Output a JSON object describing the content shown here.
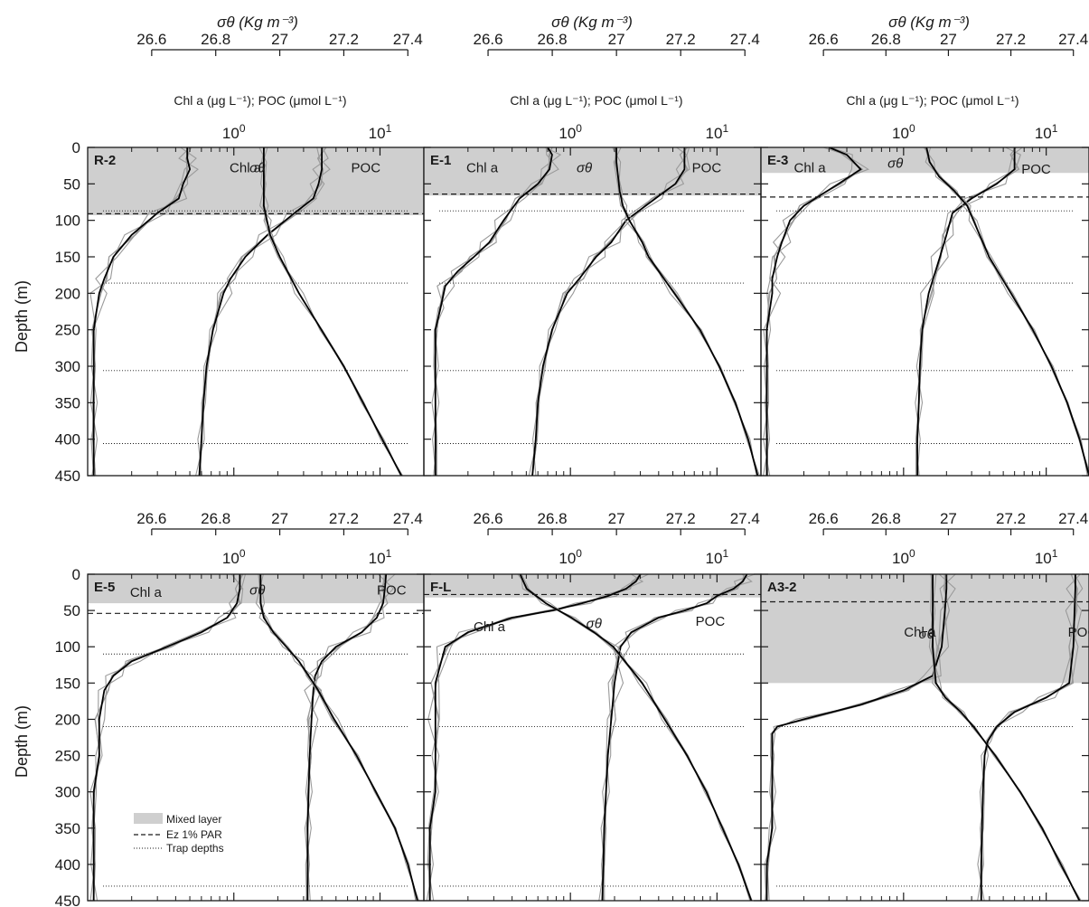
{
  "figure": {
    "top_sigma_label": "σθ (Kg m⁻³)",
    "top_conc_label": "Chl a (μg L⁻¹);  POC (μmol L⁻¹)",
    "ylabel": "Depth (m)",
    "legend": {
      "mixed": "Mixed layer",
      "ez": "Ez 1% PAR",
      "trap": "Trap depths"
    }
  },
  "colors": {
    "mixed_layer": "#cfcfcf",
    "replicates": "#9a9a9a",
    "mean": "#000000",
    "frame": "#1a1a1a"
  },
  "chart_data": [
    {
      "type": "line",
      "title": "R-2",
      "sigma_ticks": [
        "26.6",
        "26.8",
        "27",
        "27.2",
        "27.4"
      ],
      "conc_ticks": [
        "10^0",
        "10^1"
      ],
      "depth_ticks": [
        "0",
        "50",
        "100",
        "150",
        "200",
        "250",
        "300",
        "350",
        "400",
        "450"
      ],
      "ylim": [
        450,
        0
      ],
      "sigma_xlim": [
        26.4,
        27.45
      ],
      "conc_xlim_log10": [
        -1.0,
        1.3
      ],
      "mixed_layer_depth": 93,
      "ez_depth": 91,
      "trap_depths": [
        87,
        186,
        306,
        406
      ],
      "annotations": [
        {
          "text": "Chl a",
          "depth": 28,
          "conc": 1.2
        },
        {
          "text": "σθ",
          "depth": 28,
          "sigma": 26.93
        },
        {
          "text": "POC",
          "depth": 28,
          "conc": 8.0
        }
      ],
      "series": [
        {
          "name": "Chl a",
          "depth": [
            0,
            15,
            30,
            50,
            70,
            90,
            120,
            150,
            180,
            200,
            250,
            300,
            350,
            400,
            450
          ],
          "value": [
            0.48,
            0.48,
            0.5,
            0.45,
            0.42,
            0.3,
            0.2,
            0.15,
            0.13,
            0.12,
            0.11,
            0.11,
            0.11,
            0.11,
            0.11
          ]
        },
        {
          "name": "POC",
          "depth": [
            0,
            15,
            30,
            50,
            70,
            90,
            120,
            150,
            180,
            200,
            250,
            300,
            350,
            400,
            450
          ],
          "value": [
            4.0,
            4.0,
            4.0,
            3.8,
            3.5,
            2.6,
            1.7,
            1.2,
            0.95,
            0.85,
            0.72,
            0.65,
            0.62,
            0.6,
            0.58
          ]
        },
        {
          "name": "σθ",
          "depth": [
            0,
            20,
            50,
            80,
            100,
            120,
            150,
            200,
            250,
            300,
            350,
            400,
            450
          ],
          "value": [
            26.95,
            26.95,
            26.95,
            26.95,
            26.96,
            26.97,
            27.0,
            27.06,
            27.13,
            27.2,
            27.26,
            27.32,
            27.38
          ]
        }
      ]
    },
    {
      "type": "line",
      "title": "E-1",
      "sigma_ticks": [
        "26.6",
        "26.8",
        "27",
        "27.2",
        "27.4"
      ],
      "conc_ticks": [
        "10^0",
        "10^1"
      ],
      "depth_ticks": [
        "0",
        "50",
        "100",
        "150",
        "200",
        "250",
        "300",
        "350",
        "400",
        "450"
      ],
      "ylim": [
        450,
        0
      ],
      "sigma_xlim": [
        26.4,
        27.45
      ],
      "conc_xlim_log10": [
        -1.0,
        1.3
      ],
      "mixed_layer_depth": 66,
      "ez_depth": 64,
      "trap_depths": [
        87,
        186,
        306,
        406
      ],
      "annotations": [
        {
          "text": "Chl a",
          "depth": 28,
          "conc": 0.25
        },
        {
          "text": "σθ",
          "depth": 28,
          "sigma": 26.9
        },
        {
          "text": "POC",
          "depth": 28,
          "conc": 8.5
        }
      ],
      "series": [
        {
          "name": "Chl a",
          "depth": [
            0,
            10,
            30,
            50,
            70,
            100,
            130,
            150,
            170,
            190,
            220,
            250,
            300,
            350,
            400,
            450
          ],
          "value": [
            0.7,
            0.75,
            0.72,
            0.6,
            0.45,
            0.35,
            0.28,
            0.22,
            0.17,
            0.14,
            0.13,
            0.12,
            0.12,
            0.12,
            0.12,
            0.12
          ]
        },
        {
          "name": "POC",
          "depth": [
            0,
            10,
            30,
            50,
            70,
            100,
            130,
            150,
            180,
            200,
            250,
            300,
            350,
            400,
            450
          ],
          "value": [
            6.0,
            6.0,
            6.0,
            5.2,
            3.8,
            2.4,
            1.9,
            1.5,
            1.15,
            0.95,
            0.75,
            0.65,
            0.6,
            0.58,
            0.55
          ]
        },
        {
          "name": "σθ",
          "depth": [
            0,
            20,
            60,
            80,
            100,
            130,
            150,
            200,
            250,
            300,
            350,
            400,
            450
          ],
          "value": [
            27.0,
            27.0,
            27.01,
            27.02,
            27.04,
            27.08,
            27.1,
            27.18,
            27.26,
            27.32,
            27.37,
            27.41,
            27.44
          ]
        }
      ]
    },
    {
      "type": "line",
      "title": "E-3",
      "sigma_ticks": [
        "26.6",
        "26.8",
        "27",
        "27.2",
        "27.4"
      ],
      "conc_ticks": [
        "10^0",
        "10^1"
      ],
      "depth_ticks": [
        "0",
        "50",
        "100",
        "150",
        "200",
        "250",
        "300",
        "350",
        "400",
        "450"
      ],
      "ylim": [
        450,
        0
      ],
      "sigma_xlim": [
        26.4,
        27.45
      ],
      "conc_xlim_log10": [
        -1.0,
        1.3
      ],
      "mixed_layer_depth": 35,
      "ez_depth": 68,
      "trap_depths": [
        87,
        186,
        306,
        406
      ],
      "annotations": [
        {
          "text": "Chl a",
          "depth": 28,
          "conc": 0.22
        },
        {
          "text": "σθ",
          "depth": 22,
          "sigma": 26.83
        },
        {
          "text": "POC",
          "depth": 30,
          "conc": 8.5
        }
      ],
      "series": [
        {
          "name": "Chl a",
          "depth": [
            0,
            10,
            30,
            50,
            80,
            100,
            130,
            150,
            180,
            200,
            250,
            300,
            350,
            400,
            450
          ],
          "value": [
            0.3,
            0.4,
            0.5,
            0.35,
            0.2,
            0.16,
            0.14,
            0.13,
            0.12,
            0.12,
            0.11,
            0.11,
            0.11,
            0.11,
            0.11
          ]
        },
        {
          "name": "POC",
          "depth": [
            0,
            10,
            30,
            50,
            70,
            90,
            120,
            150,
            200,
            250,
            300,
            350,
            400,
            450
          ],
          "value": [
            6.0,
            6.0,
            6.0,
            4.5,
            3.0,
            2.2,
            2.0,
            1.8,
            1.5,
            1.35,
            1.3,
            1.28,
            1.25,
            1.25
          ]
        },
        {
          "name": "σθ",
          "depth": [
            0,
            20,
            40,
            60,
            80,
            100,
            150,
            200,
            250,
            300,
            350,
            400,
            450
          ],
          "value": [
            26.93,
            26.94,
            26.97,
            27.02,
            27.06,
            27.08,
            27.13,
            27.2,
            27.27,
            27.33,
            27.38,
            27.42,
            27.45
          ]
        }
      ]
    },
    {
      "type": "line",
      "title": "E-5",
      "sigma_ticks": [
        "26.6",
        "26.8",
        "27",
        "27.2",
        "27.4"
      ],
      "conc_ticks": [
        "10^0",
        "10^1"
      ],
      "depth_ticks": [
        "0",
        "50",
        "100",
        "150",
        "200",
        "250",
        "300",
        "350",
        "400",
        "450"
      ],
      "ylim": [
        450,
        0
      ],
      "sigma_xlim": [
        26.4,
        27.45
      ],
      "conc_xlim_log10": [
        -1.0,
        1.3
      ],
      "mixed_layer_depth": 40,
      "ez_depth": 54,
      "trap_depths": [
        110,
        210,
        430
      ],
      "annotations": [
        {
          "text": "Chl a",
          "depth": 25,
          "conc": 0.25
        },
        {
          "text": "σθ",
          "depth": 22,
          "sigma": 26.93
        },
        {
          "text": "POC",
          "depth": 22,
          "conc": 12.0
        }
      ],
      "series": [
        {
          "name": "Chl a",
          "depth": [
            0,
            20,
            40,
            60,
            80,
            100,
            120,
            140,
            160,
            200,
            250,
            300,
            350,
            400,
            450
          ],
          "value": [
            1.1,
            1.1,
            1.05,
            0.9,
            0.6,
            0.35,
            0.2,
            0.15,
            0.13,
            0.12,
            0.12,
            0.11,
            0.11,
            0.11,
            0.11
          ]
        },
        {
          "name": "POC",
          "depth": [
            0,
            20,
            40,
            60,
            80,
            100,
            120,
            140,
            160,
            200,
            250,
            300,
            350,
            400,
            450
          ],
          "value": [
            11.0,
            10.8,
            10.5,
            9.5,
            7.5,
            5.0,
            4.0,
            3.6,
            3.5,
            3.4,
            3.3,
            3.25,
            3.2,
            3.2,
            3.2
          ]
        },
        {
          "name": "σθ",
          "depth": [
            0,
            40,
            60,
            80,
            100,
            120,
            140,
            160,
            200,
            250,
            300,
            350,
            400,
            450
          ],
          "value": [
            26.94,
            26.94,
            26.95,
            26.98,
            27.02,
            27.06,
            27.09,
            27.12,
            27.17,
            27.24,
            27.3,
            27.36,
            27.4,
            27.43
          ]
        }
      ]
    },
    {
      "type": "line",
      "title": "F-L",
      "sigma_ticks": [
        "26.6",
        "26.8",
        "27",
        "27.2",
        "27.4"
      ],
      "conc_ticks": [
        "10^0",
        "10^1"
      ],
      "depth_ticks": [
        "0",
        "50",
        "100",
        "150",
        "200",
        "250",
        "300",
        "350",
        "400",
        "450"
      ],
      "ylim": [
        450,
        0
      ],
      "sigma_xlim": [
        26.4,
        27.45
      ],
      "conc_xlim_log10": [
        -1.0,
        1.3
      ],
      "mixed_layer_depth": 32,
      "ez_depth": 28,
      "trap_depths": [
        110,
        210,
        430
      ],
      "annotations": [
        {
          "text": "Chl a",
          "depth": 72,
          "conc": 0.28
        },
        {
          "text": "σθ",
          "depth": 68,
          "sigma": 26.93
        },
        {
          "text": "POC",
          "depth": 65,
          "conc": 9.0
        }
      ],
      "series": [
        {
          "name": "Chl a",
          "depth": [
            0,
            10,
            20,
            30,
            40,
            50,
            60,
            80,
            100,
            150,
            200,
            250,
            300,
            350,
            400,
            450
          ],
          "value": [
            3.0,
            2.8,
            2.4,
            1.8,
            1.2,
            0.75,
            0.4,
            0.2,
            0.14,
            0.12,
            0.12,
            0.12,
            0.12,
            0.11,
            0.11,
            0.11
          ]
        },
        {
          "name": "POC",
          "depth": [
            0,
            10,
            20,
            30,
            40,
            50,
            60,
            80,
            100,
            150,
            200,
            250,
            300,
            350,
            400,
            450
          ],
          "value": [
            16.0,
            15.0,
            13.0,
            10.0,
            8.5,
            6.0,
            4.0,
            2.6,
            2.2,
            2.0,
            1.9,
            1.8,
            1.75,
            1.7,
            1.68,
            1.65
          ]
        },
        {
          "name": "σθ",
          "depth": [
            0,
            20,
            40,
            60,
            80,
            100,
            150,
            200,
            250,
            300,
            350,
            400,
            450
          ],
          "value": [
            26.7,
            26.72,
            26.78,
            26.86,
            26.93,
            26.99,
            27.08,
            27.15,
            27.22,
            27.28,
            27.33,
            27.38,
            27.42
          ]
        }
      ]
    },
    {
      "type": "line",
      "title": "A3-2",
      "sigma_ticks": [
        "26.6",
        "26.8",
        "27",
        "27.2",
        "27.4"
      ],
      "conc_ticks": [
        "10^0",
        "10^1"
      ],
      "depth_ticks": [
        "0",
        "50",
        "100",
        "150",
        "200",
        "250",
        "300",
        "350",
        "400",
        "450"
      ],
      "ylim": [
        450,
        0
      ],
      "sigma_xlim": [
        26.4,
        27.45
      ],
      "conc_xlim_log10": [
        -1.0,
        1.3
      ],
      "mixed_layer_depth": 150,
      "ez_depth": 38,
      "trap_depths": [
        210,
        430
      ],
      "annotations": [
        {
          "text": "Chl a",
          "depth": 80,
          "conc": 1.3
        },
        {
          "text": "σθ",
          "depth": 82,
          "sigma": 26.93
        },
        {
          "text": "POC",
          "depth": 80,
          "conc": 18.0
        }
      ],
      "series": [
        {
          "name": "Chl a",
          "depth": [
            0,
            20,
            50,
            100,
            140,
            160,
            180,
            200,
            210,
            220,
            250,
            300,
            350,
            400,
            450
          ],
          "value": [
            2.0,
            2.0,
            1.95,
            1.85,
            1.6,
            1.0,
            0.5,
            0.2,
            0.13,
            0.12,
            0.12,
            0.12,
            0.12,
            0.11,
            0.11
          ]
        },
        {
          "name": "POC",
          "depth": [
            0,
            20,
            50,
            100,
            150,
            170,
            190,
            210,
            230,
            250,
            300,
            350,
            400,
            450
          ],
          "value": [
            16.0,
            16.0,
            15.8,
            15.5,
            14.5,
            10.0,
            6.0,
            4.5,
            3.9,
            3.7,
            3.6,
            3.55,
            3.5,
            3.5
          ]
        },
        {
          "name": "σθ",
          "depth": [
            0,
            50,
            100,
            150,
            170,
            190,
            210,
            250,
            300,
            350,
            400,
            450
          ],
          "value": [
            26.95,
            26.95,
            26.95,
            26.96,
            26.99,
            27.04,
            27.08,
            27.15,
            27.23,
            27.3,
            27.36,
            27.42
          ]
        }
      ]
    }
  ]
}
